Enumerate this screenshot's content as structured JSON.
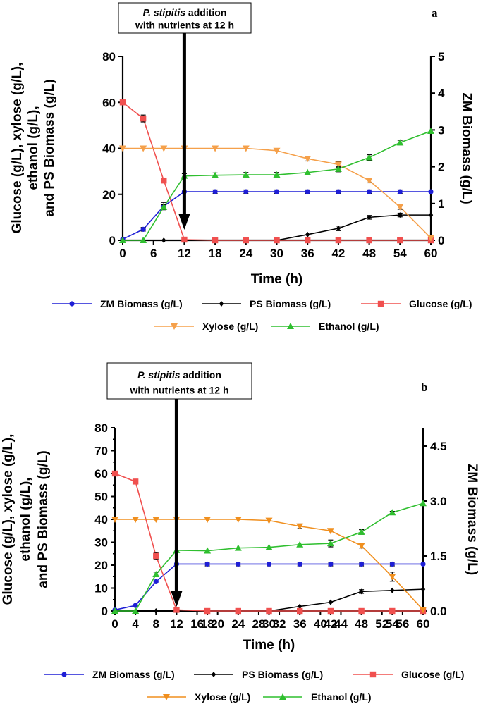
{
  "chart_data": [
    {
      "type": "line",
      "panel_label": "a",
      "annotation": {
        "prefix": "P. stipitis",
        "suffix": " addition",
        "line2": "with nutrients at 12 h",
        "arrow_x": 12
      },
      "xlabel": "Time (h)",
      "ylabel_left": [
        "Glucose (g/L), xylose (g/L),",
        "ethanol (g/L),",
        "and PS Biomass (g/L)"
      ],
      "ylabel_right": "ZM Biomass (g/L)",
      "xlim": [
        0,
        60
      ],
      "xticks": [
        0,
        6,
        12,
        18,
        24,
        30,
        36,
        42,
        48,
        54,
        60
      ],
      "xtick_labels": [
        "0",
        "6",
        "12",
        "18",
        "24",
        "30",
        "36",
        "42",
        "48",
        "54",
        "60"
      ],
      "ylim_left": [
        0,
        80
      ],
      "yticks_left": [
        0,
        20,
        40,
        60,
        80
      ],
      "ytick_labels_left": [
        "0",
        "20",
        "40",
        "60",
        "80"
      ],
      "ylim_right": [
        0,
        5
      ],
      "yticks_right": [
        0,
        1,
        2,
        3,
        4,
        5
      ],
      "ytick_labels_right": [
        "0",
        "1",
        "2",
        "3",
        "4",
        "5"
      ],
      "minor_yticks_left": [],
      "series": [
        {
          "name": "ZM Biomass (g/L)",
          "axis": "right",
          "color": "#1f1fd6",
          "marker": "circle",
          "x": [
            0,
            4,
            8,
            12,
            18,
            24,
            30,
            36,
            42,
            48,
            54,
            60
          ],
          "y": [
            0.03,
            0.3,
            0.93,
            1.32,
            1.32,
            1.32,
            1.32,
            1.32,
            1.32,
            1.32,
            1.32,
            1.32
          ],
          "err": [
            0,
            0.05,
            0.1,
            0,
            0.05,
            0.05,
            0.05,
            0.05,
            0.05,
            0.05,
            0.05,
            0
          ]
        },
        {
          "name": "PS Biomass (g/L)",
          "axis": "left",
          "color": "#000000",
          "marker": "diamond",
          "x": [
            0,
            4,
            8,
            12,
            18,
            24,
            30,
            36,
            42,
            48,
            54,
            60
          ],
          "y": [
            0,
            0,
            0,
            0,
            0,
            0,
            0,
            2.5,
            5.2,
            10,
            11,
            11
          ],
          "err": [
            0,
            0,
            0,
            0,
            0,
            0,
            0,
            0,
            1,
            0.8,
            0.8,
            0
          ]
        },
        {
          "name": "Glucose (g/L)",
          "axis": "left",
          "color": "#f0504f",
          "marker": "square",
          "x": [
            0,
            4,
            8,
            12,
            18,
            24,
            30,
            36,
            42,
            48,
            54,
            60
          ],
          "y": [
            60,
            53,
            26,
            0.3,
            0,
            0,
            0,
            0,
            0,
            0,
            0,
            0
          ],
          "err": [
            0,
            1.5,
            1,
            0,
            0,
            0,
            0,
            0,
            0,
            0,
            0,
            0
          ]
        },
        {
          "name": "Xylose (g/L)",
          "axis": "left",
          "color": "#f5a04a",
          "marker": "triangle-down",
          "x": [
            0,
            4,
            8,
            12,
            18,
            24,
            30,
            36,
            42,
            48,
            54,
            60
          ],
          "y": [
            40,
            40,
            40,
            40,
            40,
            40,
            39,
            35.5,
            33,
            26,
            14.5,
            1
          ],
          "err": [
            0,
            0,
            0,
            0,
            0,
            0,
            0,
            1,
            1.2,
            1,
            1,
            0
          ]
        },
        {
          "name": "Ethanol (g/L)",
          "axis": "left",
          "color": "#2fbf2f",
          "marker": "triangle-up",
          "x": [
            0,
            4,
            8,
            12,
            18,
            24,
            30,
            36,
            42,
            48,
            54,
            60
          ],
          "y": [
            0,
            0,
            14.5,
            28,
            28.3,
            28.5,
            28.5,
            29.5,
            31,
            36,
            42.5,
            47.5
          ],
          "err": [
            0,
            0,
            1,
            1,
            1,
            1,
            1,
            0,
            1.2,
            1.2,
            1,
            0
          ]
        }
      ]
    },
    {
      "type": "line",
      "panel_label": "b",
      "annotation": {
        "prefix": "P. stipitis",
        "suffix": " addition",
        "line2": "with nutrients at 12 h",
        "arrow_x": 12
      },
      "xlabel": "Time (h)",
      "ylabel_left": [
        "Glucose (g/L), xylose (g/L),",
        "ethanol (g/L),",
        "and PS Biomass (g/L)"
      ],
      "ylabel_right": "ZM Biomass (g/L)",
      "xlim": [
        0,
        60
      ],
      "xticks": [
        0,
        4,
        8,
        12,
        16,
        18,
        20,
        24,
        28,
        30,
        32,
        36,
        40,
        42,
        44,
        48,
        52,
        54,
        56,
        60
      ],
      "xtick_labels": [
        "0",
        "4",
        "8",
        "12",
        "16",
        "18",
        "20",
        "24",
        "28",
        "30",
        "32",
        "36",
        "40",
        "42",
        "44",
        "48",
        "52",
        "54",
        "56",
        "60"
      ],
      "ylim_left": [
        0,
        80
      ],
      "yticks_left": [
        0,
        10,
        20,
        30,
        40,
        50,
        60,
        70,
        80
      ],
      "ytick_labels_left": [
        "0",
        "10",
        "20",
        "30",
        "40",
        "50",
        "60",
        "70",
        "80"
      ],
      "ylim_right": [
        0,
        5
      ],
      "yticks_right": [
        0,
        1.5,
        3,
        4.5
      ],
      "ytick_labels_right": [
        "0.0",
        "1.5",
        "3.0",
        "4.5"
      ],
      "minor_yticks_left": [
        5,
        15,
        25,
        35,
        45,
        55,
        65,
        75
      ],
      "series": [
        {
          "name": "ZM Biomass (g/L)",
          "axis": "right",
          "color": "#1f1fd6",
          "marker": "circle",
          "x": [
            0,
            4,
            8,
            12,
            18,
            24,
            30,
            36,
            42,
            48,
            54,
            60
          ],
          "y": [
            0.03,
            0.15,
            0.8,
            1.28,
            1.28,
            1.28,
            1.28,
            1.28,
            1.28,
            1.28,
            1.28,
            1.28
          ],
          "err": [
            0,
            0,
            0,
            0,
            0.05,
            0.05,
            0.05,
            0.05,
            0.05,
            0.05,
            0.05,
            0
          ]
        },
        {
          "name": "PS Biomass (g/L)",
          "axis": "left",
          "color": "#000000",
          "marker": "diamond",
          "x": [
            0,
            4,
            8,
            12,
            18,
            24,
            30,
            36,
            42,
            48,
            54,
            60
          ],
          "y": [
            0,
            0,
            0,
            0,
            0,
            0,
            0,
            2,
            3.8,
            8.5,
            9,
            9.5
          ],
          "err": [
            0,
            0,
            0,
            0,
            0,
            0,
            0,
            0,
            0,
            0.8,
            0,
            0
          ]
        },
        {
          "name": "Glucose (g/L)",
          "axis": "left",
          "color": "#f0504f",
          "marker": "square",
          "x": [
            0,
            4,
            8,
            12,
            18,
            24,
            30,
            36,
            42,
            48,
            54,
            60
          ],
          "y": [
            60,
            56.5,
            24,
            0.5,
            0,
            0,
            0,
            0,
            0,
            0,
            0,
            0
          ],
          "err": [
            0,
            1,
            1.5,
            0,
            0,
            0,
            0,
            0,
            0,
            0,
            0,
            0
          ]
        },
        {
          "name": "Xylose (g/L)",
          "axis": "left",
          "color": "#f08f1e",
          "marker": "triangle-down",
          "x": [
            0,
            4,
            8,
            12,
            18,
            24,
            30,
            36,
            42,
            48,
            54,
            60
          ],
          "y": [
            40,
            40,
            40,
            40,
            40,
            40,
            39.5,
            37,
            35,
            28.5,
            15,
            0.5
          ],
          "err": [
            0,
            0,
            0,
            0,
            0,
            0,
            0,
            1,
            0,
            1,
            2,
            0
          ]
        },
        {
          "name": "Ethanol (g/L)",
          "axis": "left",
          "color": "#2fbf2f",
          "marker": "triangle-up",
          "x": [
            0,
            4,
            8,
            12,
            18,
            24,
            30,
            36,
            42,
            48,
            54,
            60
          ],
          "y": [
            0,
            0,
            16,
            26.5,
            26.3,
            27.5,
            27.8,
            29,
            29.5,
            34.5,
            43,
            47
          ],
          "err": [
            0,
            0,
            1,
            0,
            0,
            0,
            0,
            0,
            1.5,
            1,
            0.5,
            0
          ]
        }
      ]
    }
  ]
}
